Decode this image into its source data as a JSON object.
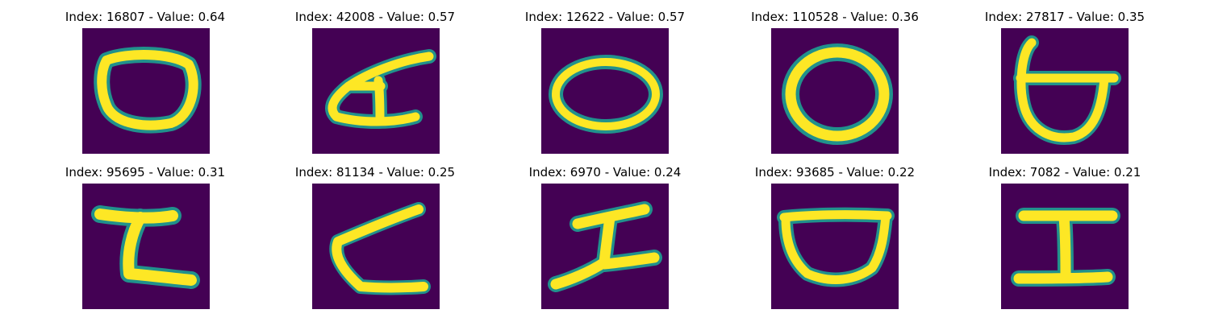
{
  "colors": {
    "background": "#440154",
    "stroke_core": "#fde725",
    "stroke_edge": "#21918c",
    "stroke_mid": "#5ec962"
  },
  "panels": [
    {
      "title": "Index: 16807 - Value: 0.64"
    },
    {
      "title": "Index: 42008 - Value: 0.57"
    },
    {
      "title": "Index: 12622 - Value: 0.57"
    },
    {
      "title": "Index: 110528 - Value: 0.36"
    },
    {
      "title": "Index: 27817 - Value: 0.35"
    },
    {
      "title": "Index: 95695 - Value: 0.31"
    },
    {
      "title": "Index: 81134 - Value: 0.25"
    },
    {
      "title": "Index: 6970 - Value: 0.24"
    },
    {
      "title": "Index: 93685 - Value: 0.22"
    },
    {
      "title": "Index: 7082 - Value: 0.21"
    }
  ]
}
